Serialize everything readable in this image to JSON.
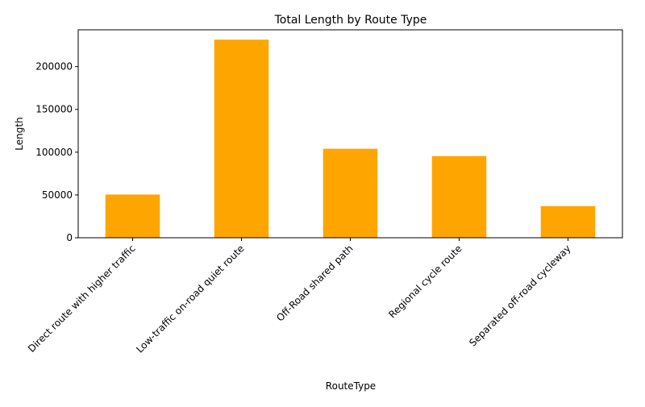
{
  "chart_data": {
    "type": "bar",
    "title": "Total Length by Route Type",
    "xlabel": "RouteType",
    "ylabel": "Length",
    "categories": [
      "Direct route with higher traffic",
      "Low-traffic on-road quiet route",
      "Off-Road shared path",
      "Regional cycle route",
      "Separated off-road cycleway"
    ],
    "values": [
      50500,
      231500,
      104000,
      95500,
      37000
    ],
    "ylim": [
      0,
      243000
    ],
    "yticks": [
      0,
      50000,
      100000,
      150000,
      200000
    ],
    "grid": false,
    "legend": "none",
    "colors": {
      "bar": "#ffa500",
      "axis": "#000000",
      "background": "#ffffff"
    }
  }
}
